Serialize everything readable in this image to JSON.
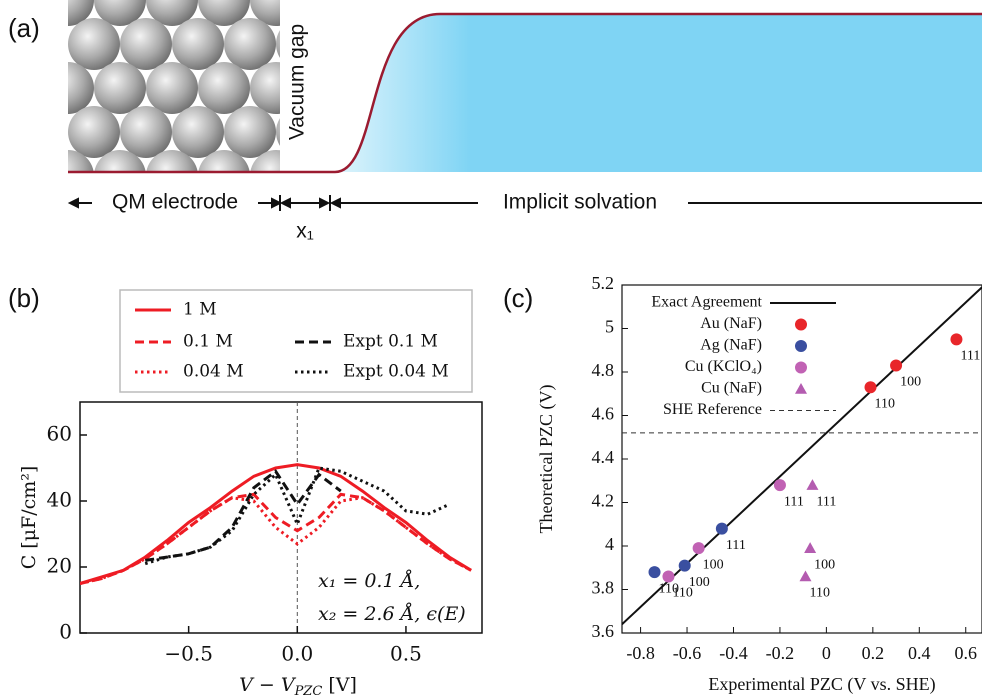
{
  "panel_a": {
    "label": "(a)",
    "vacuum_gap": "Vacuum gap",
    "qm_electrode": "QM electrode",
    "gap_width": "x₁",
    "implicit_solvation": "Implicit solvation"
  },
  "chart_data": [
    {
      "type": "line",
      "panel_label": "(b)",
      "x_label": {
        "text": "V − V",
        "subscript": "PZC",
        "suffix": " [V]"
      },
      "y_label": "C [μF/cm²]",
      "annotations": [
        "x₁ = 0.1 Å,",
        "x₂ = 2.6 Å, ϵ(E)"
      ],
      "x": [
        -1.0,
        -0.9,
        -0.8,
        -0.7,
        -0.6,
        -0.5,
        -0.4,
        -0.3,
        -0.2,
        -0.1,
        0,
        0.1,
        0.2,
        0.3,
        0.4,
        0.5,
        0.6,
        0.7,
        0.8
      ],
      "xlim": [
        -1.0,
        0.85
      ],
      "ylim": [
        0,
        70
      ],
      "xticks": [
        {
          "value": -0.5,
          "label": "−0.5"
        },
        {
          "value": 0,
          "label": "0.0"
        },
        {
          "value": 0.5,
          "label": "0.5"
        }
      ],
      "yticks": [
        0,
        20,
        40,
        60
      ],
      "series": [
        {
          "name": "1 M",
          "color": "#ee1c24",
          "linestyle": "solid",
          "values": [
            15,
            17,
            19,
            23,
            28,
            33.5,
            38,
            43,
            47.5,
            50,
            51,
            50,
            47.5,
            43,
            38,
            33.5,
            28,
            23,
            19
          ]
        },
        {
          "name": "0.1 M",
          "color": "#ee1c24",
          "linestyle": "dashed",
          "values": [
            15,
            16.5,
            19,
            22.5,
            27,
            32,
            37,
            41,
            42,
            35,
            31,
            35,
            42,
            41,
            37,
            32,
            27,
            22.5,
            19
          ]
        },
        {
          "name": "0.04 M",
          "color": "#ee1c24",
          "linestyle": "dotted",
          "values": [
            15,
            16.5,
            19,
            22.5,
            27,
            32,
            37,
            41,
            40,
            32,
            27,
            32,
            40,
            41,
            37,
            32,
            27,
            22.5,
            19
          ]
        },
        {
          "name": "Expt 0.1 M",
          "color": "#111111",
          "linestyle": "dashed",
          "values": [
            null,
            null,
            null,
            22,
            23,
            24,
            26,
            32,
            44,
            49,
            39,
            48,
            43,
            null,
            null,
            null,
            null,
            null,
            null
          ]
        },
        {
          "name": "Expt 0.04 M",
          "color": "#111111",
          "linestyle": "dotted",
          "values": [
            null,
            null,
            null,
            21,
            23,
            24,
            26,
            31,
            42,
            48,
            33,
            50,
            49,
            46,
            43,
            37,
            36,
            39,
            null
          ]
        }
      ]
    },
    {
      "type": "scatter",
      "panel_label": "(c)",
      "x_label": "Experimental PZC (V vs. SHE)",
      "y_label": "Theoretical PZC (V)",
      "xlim": [
        -0.88,
        0.67
      ],
      "ylim": [
        3.6,
        5.2
      ],
      "xticks": [
        -0.8,
        -0.6,
        -0.4,
        -0.2,
        0,
        0.2,
        0.4,
        0.6
      ],
      "yticks": [
        3.6,
        3.8,
        4,
        4.2,
        4.4,
        4.6,
        4.8,
        5,
        5.2
      ],
      "series": [
        {
          "name": "Exact Agreement",
          "color": "#111111",
          "marker": "line",
          "linestyle": "solid",
          "x": [
            -0.88,
            0.67
          ],
          "values": [
            3.64,
            5.19
          ]
        },
        {
          "name": "Au (NaF)",
          "color": "#e8262a",
          "marker": "circle",
          "x": [
            0.19,
            0.3,
            0.56
          ],
          "values": [
            4.73,
            4.83,
            4.95
          ],
          "labels": [
            "110",
            "100",
            "111"
          ]
        },
        {
          "name": "Ag (NaF)",
          "color": "#3a4fa0",
          "marker": "circle",
          "x": [
            -0.74,
            -0.61,
            -0.45
          ],
          "values": [
            3.88,
            3.91,
            4.08
          ],
          "labels": [
            "110",
            "100",
            "111"
          ]
        },
        {
          "name": "Cu (KClO₄)",
          "color": "#c162b4",
          "marker": "circle",
          "x": [
            -0.68,
            -0.55,
            -0.2
          ],
          "values": [
            3.86,
            3.99,
            4.28
          ],
          "labels": [
            "110",
            "100",
            "111"
          ]
        },
        {
          "name": "Cu (NaF)",
          "color": "#b45cb0",
          "marker": "triangle",
          "x": [
            -0.09,
            -0.07,
            -0.06
          ],
          "values": [
            3.86,
            3.99,
            4.28
          ],
          "labels": [
            "110",
            "100",
            "111"
          ]
        },
        {
          "name": "SHE Reference",
          "color": "#333333",
          "marker": "line",
          "linestyle": "dashed",
          "x": [
            -0.88,
            0.67
          ],
          "values": [
            4.52,
            4.52
          ]
        }
      ]
    }
  ]
}
